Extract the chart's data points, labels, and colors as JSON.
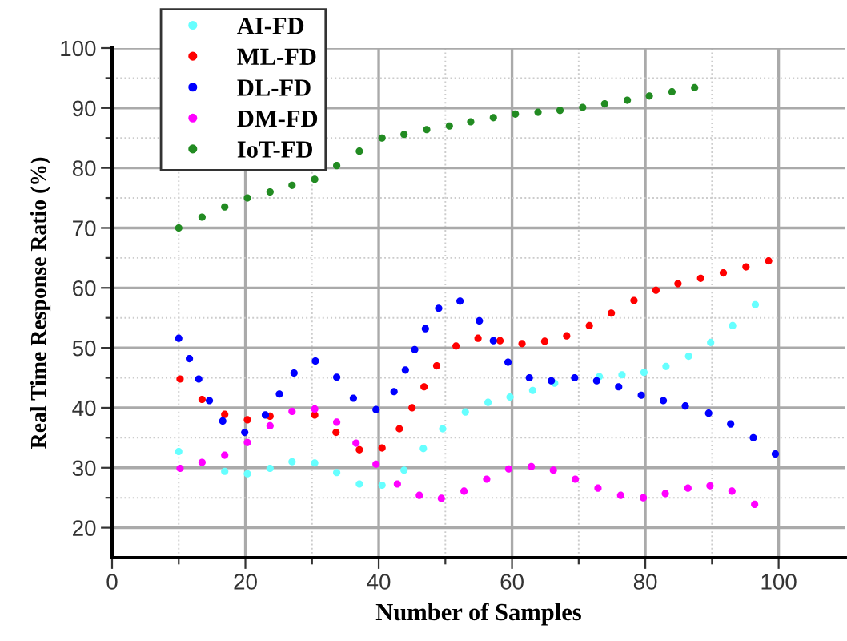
{
  "chart_data": {
    "type": "scatter",
    "xlabel": "Number of Samples",
    "ylabel": "Real Time Response Ratio (%)",
    "xlim": [
      0,
      110
    ],
    "ylim": [
      15,
      100
    ],
    "xticks": [
      0,
      {
        "value": 10,
        "label": null
      },
      20,
      {
        "value": 30,
        "label": null
      },
      40,
      {
        "value": 50,
        "label": null
      },
      60,
      {
        "value": 70,
        "label": null
      },
      80,
      {
        "value": 90,
        "label": null
      },
      100
    ],
    "yticks": [
      20,
      {
        "value": 25,
        "label": null
      },
      30,
      {
        "value": 35,
        "label": null
      },
      40,
      {
        "value": 45,
        "label": null
      },
      50,
      {
        "value": 55,
        "label": null
      },
      60,
      {
        "value": 65,
        "label": null
      },
      70,
      {
        "value": 75,
        "label": null
      },
      80,
      {
        "value": 85,
        "label": null
      },
      90,
      {
        "value": 95,
        "label": null
      },
      100
    ],
    "grid": true,
    "legend": "top left",
    "marker": "circle",
    "series": [
      {
        "name": "AI-FD",
        "color": "#66ffff",
        "x": [
          10,
          16.9,
          20.3,
          23.7,
          27,
          30.4,
          33.7,
          37.1,
          40.5,
          43.8,
          46.7,
          49.6,
          53,
          56.4,
          59.7,
          63.1,
          66.4,
          73.1,
          76.5,
          79.8,
          83.1,
          86.5,
          89.8,
          93.1,
          96.5
        ],
        "values": [
          32.7,
          29.4,
          29,
          29.9,
          31,
          30.8,
          29.2,
          27.3,
          27.1,
          29.6,
          33.2,
          36.5,
          39.3,
          40.9,
          41.8,
          42.9,
          44.1,
          45.2,
          45.5,
          45.9,
          46.9,
          48.6,
          50.9,
          53.7,
          57.2
        ]
      },
      {
        "name": "ML-FD",
        "color": "#ff0000",
        "x": [
          10.2,
          13.5,
          16.9,
          20.3,
          23.7,
          30.4,
          33.6,
          37.1,
          40.5,
          43.1,
          45,
          46.8,
          48.7,
          51.6,
          54.9,
          58.2,
          61.5,
          64.9,
          68.2,
          71.6,
          74.9,
          78.3,
          81.6,
          84.9,
          88.3,
          91.7,
          95.1,
          98.5
        ],
        "values": [
          44.8,
          41.4,
          38.9,
          38,
          38.6,
          38.8,
          35.9,
          33,
          33.3,
          36.5,
          40,
          43.5,
          47,
          50.3,
          51.6,
          51.2,
          50.7,
          51.1,
          52,
          53.7,
          55.8,
          57.9,
          59.6,
          60.7,
          61.6,
          62.5,
          63.5,
          64.5
        ]
      },
      {
        "name": "DL-FD",
        "color": "#0000ff",
        "x": [
          10,
          11.6,
          13,
          14.6,
          16.6,
          19.9,
          23,
          25.1,
          27.3,
          30.5,
          33.7,
          36.2,
          39.6,
          42.3,
          44,
          45.4,
          47,
          49,
          52.2,
          55.1,
          57.2,
          59.4,
          62.6,
          65.9,
          69.4,
          72.7,
          76,
          79.4,
          82.7,
          86,
          89.5,
          92.8,
          96.2,
          99.5
        ],
        "values": [
          51.6,
          48.2,
          44.8,
          41.2,
          37.8,
          35.9,
          38.8,
          42.3,
          45.8,
          47.8,
          45.1,
          41.6,
          39.7,
          42.7,
          46.3,
          49.7,
          53.2,
          56.6,
          57.8,
          54.5,
          51.2,
          47.6,
          45,
          44.5,
          45,
          44.5,
          43.5,
          42.1,
          41.2,
          40.3,
          39.1,
          37.3,
          35,
          32.3
        ]
      },
      {
        "name": "DM-FD",
        "color": "#ff00ff",
        "x": [
          10.2,
          13.5,
          16.9,
          20.3,
          23.7,
          27,
          30.4,
          33.7,
          36.6,
          39.6,
          42.8,
          46.1,
          49.4,
          52.8,
          56.2,
          59.5,
          62.9,
          66.2,
          69.5,
          72.9,
          76.3,
          79.7,
          83,
          86.4,
          89.7,
          93,
          96.4
        ],
        "values": [
          29.9,
          30.9,
          32.1,
          34.2,
          37,
          39.4,
          39.8,
          37.6,
          34.1,
          30.6,
          27.3,
          25.4,
          24.9,
          26.1,
          28.1,
          29.8,
          30.2,
          29.6,
          28.1,
          26.6,
          25.4,
          25,
          25.7,
          26.6,
          27,
          26.1,
          23.9
        ]
      },
      {
        "name": "IoT-FD",
        "color": "#228b22",
        "x": [
          10,
          13.5,
          16.9,
          20.3,
          23.7,
          27,
          30.4,
          33.7,
          37.1,
          40.5,
          43.8,
          47.2,
          50.6,
          53.8,
          57.2,
          60.5,
          63.9,
          67.2,
          70.6,
          73.9,
          77.3,
          80.6,
          84,
          87.4
        ],
        "values": [
          70,
          71.8,
          73.5,
          75,
          76,
          77.1,
          78.1,
          80.4,
          82.8,
          85,
          85.6,
          86.4,
          87,
          87.7,
          88.4,
          89,
          89.3,
          89.6,
          90.1,
          90.7,
          91.3,
          92,
          92.7,
          93.4
        ]
      }
    ]
  }
}
